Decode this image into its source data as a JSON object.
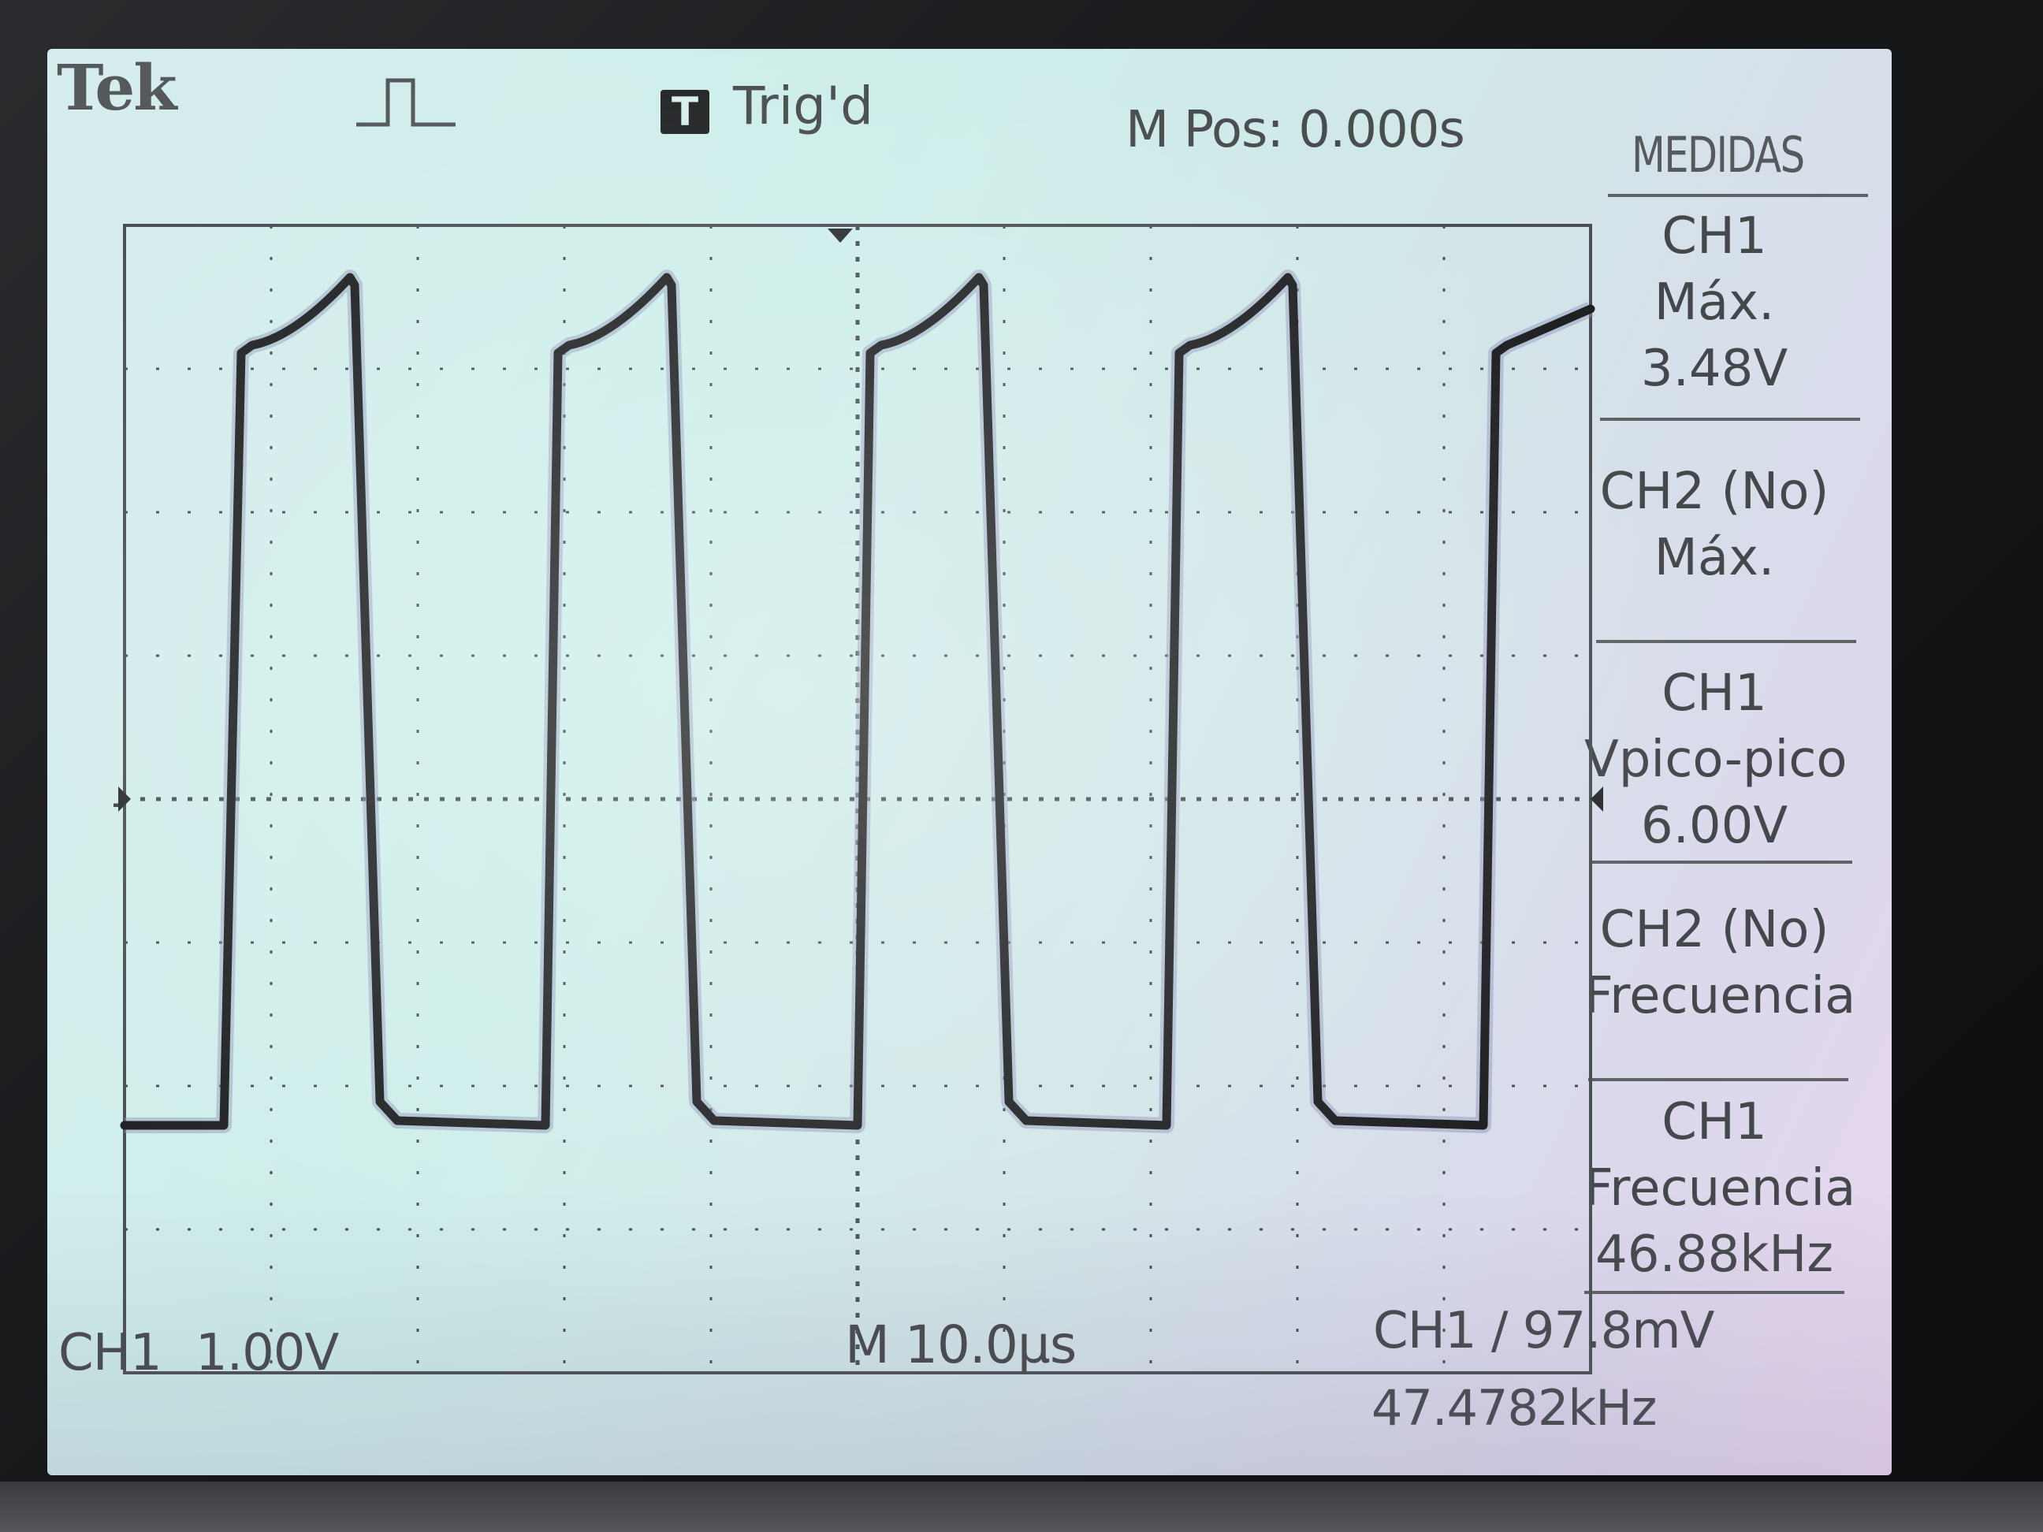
{
  "header": {
    "brand": "Tek",
    "trigger_icon_letter": "T",
    "trigger_status": "Trig'd",
    "horizontal_position": "M Pos: 0.000s"
  },
  "measurements": {
    "title": "MEDIDAS",
    "items": [
      {
        "lines": [
          "CH1",
          "Máx.",
          "3.48V"
        ]
      },
      {
        "lines": [
          "CH2 (No)",
          "Máx."
        ]
      },
      {
        "lines": [
          "CH1",
          "Vpico-pico",
          "6.00V"
        ]
      },
      {
        "lines": [
          "CH2 (No)",
          "Frecuencia"
        ]
      },
      {
        "lines": [
          "CH1",
          "Frecuencia",
          "46.88kHz"
        ]
      }
    ]
  },
  "channel_marker": "1",
  "footer": {
    "channel": "CH1",
    "volts_per_div": "1.00V",
    "timebase": "M 10.0µs",
    "trigger_info": "CH1 ∕ 97.8mV",
    "trigger_frequency": "47.4782kHz"
  },
  "colors": {
    "trace": "#1e2022",
    "grid": "#4a4f52",
    "screen": "#d4ecea"
  },
  "icons": [
    "pulse-icon",
    "trigger-icon",
    "trigger-marker-icon",
    "channel-ground-marker-icon",
    "trigger-level-marker-icon",
    "rising-edge-icon"
  ]
}
